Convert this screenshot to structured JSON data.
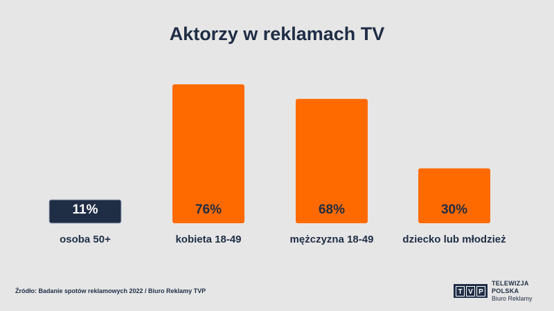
{
  "title": "Aktorzy w reklamach TV",
  "source": "Źródło: Badanie spotów reklamowych 2022 / Biuro Reklamy TVP",
  "logo": {
    "letters": [
      "T",
      "V",
      "P"
    ],
    "line1": "TELEWIZJA POLSKA",
    "line2": "Biuro Reklamy"
  },
  "colors": {
    "background": "#e6e6e6",
    "bar": "#ff6a00",
    "highlight_bar": "#1f2d45",
    "text": "#1f2d45",
    "value_text_on_orange": "#1f2d45",
    "value_text_on_navy": "#ffffff"
  },
  "chart_data": {
    "type": "bar",
    "title": "Aktorzy w reklamach TV",
    "categories": [
      "osoba 50+",
      "kobieta 18-49",
      "mężczyzna 18-49",
      "dziecko lub młodzież"
    ],
    "values": [
      11,
      76,
      68,
      30
    ],
    "value_labels": [
      "11%",
      "76%",
      "68%",
      "30%"
    ],
    "unit": "%",
    "ylim": [
      0,
      76
    ],
    "grid": false,
    "legend": "none",
    "highlighted_category": "osoba 50+"
  }
}
